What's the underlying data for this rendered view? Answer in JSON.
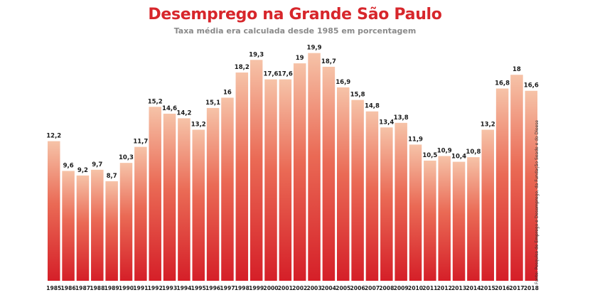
{
  "header": {
    "title": "Desemprego na Grande São Paulo",
    "subtitle": "Taxa média era calculada desde 1985 em porcentagem"
  },
  "source_note": "Fonte: Pesquisa de Emprego e Desemprego, da Fundação Seade e do Dieese",
  "colors": {
    "title": "#d7262b",
    "subtitle": "#8a8a8a",
    "bar_top": "#f6c3a8",
    "bar_bottom": "#d51f28"
  },
  "chart_data": {
    "type": "bar",
    "title": "Desemprego na Grande São Paulo",
    "subtitle": "Taxa média era calculada desde 1985 em porcentagem",
    "categories": [
      "1985",
      "1986",
      "1987",
      "1988",
      "1989",
      "1990",
      "1991",
      "1992",
      "1993",
      "1994",
      "1995",
      "1996",
      "1997",
      "1998",
      "1999",
      "2000",
      "2001",
      "2002",
      "2003",
      "2004",
      "2005",
      "2006",
      "2007",
      "2008",
      "2009",
      "2010",
      "2011",
      "2012",
      "2013",
      "2014",
      "2015",
      "2016",
      "2017",
      "2018"
    ],
    "values": [
      12.2,
      9.6,
      9.2,
      9.7,
      8.7,
      10.3,
      11.7,
      15.2,
      14.6,
      14.2,
      13.2,
      15.1,
      16,
      18.2,
      19.3,
      17.6,
      17.6,
      19,
      19.9,
      18.7,
      16.9,
      15.8,
      14.8,
      13.4,
      13.8,
      11.9,
      10.5,
      10.9,
      10.4,
      10.8,
      13.2,
      16.8,
      18,
      16.6
    ],
    "labels": [
      "12,2",
      "9,6",
      "9,2",
      "9,7",
      "8,7",
      "10,3",
      "11,7",
      "15,2",
      "14,6",
      "14,2",
      "13,2",
      "15,1",
      "16",
      "18,2",
      "19,3",
      "17,6",
      "17,6",
      "19",
      "19,9",
      "18,7",
      "16,9",
      "15,8",
      "14,8",
      "13,4",
      "13,8",
      "11,9",
      "10,5",
      "10,9",
      "10,4",
      "10,8",
      "13,2",
      "16,8",
      "18",
      "16,6"
    ],
    "ylim": [
      0,
      20
    ],
    "grid": false,
    "xlabel": "",
    "ylabel": ""
  }
}
